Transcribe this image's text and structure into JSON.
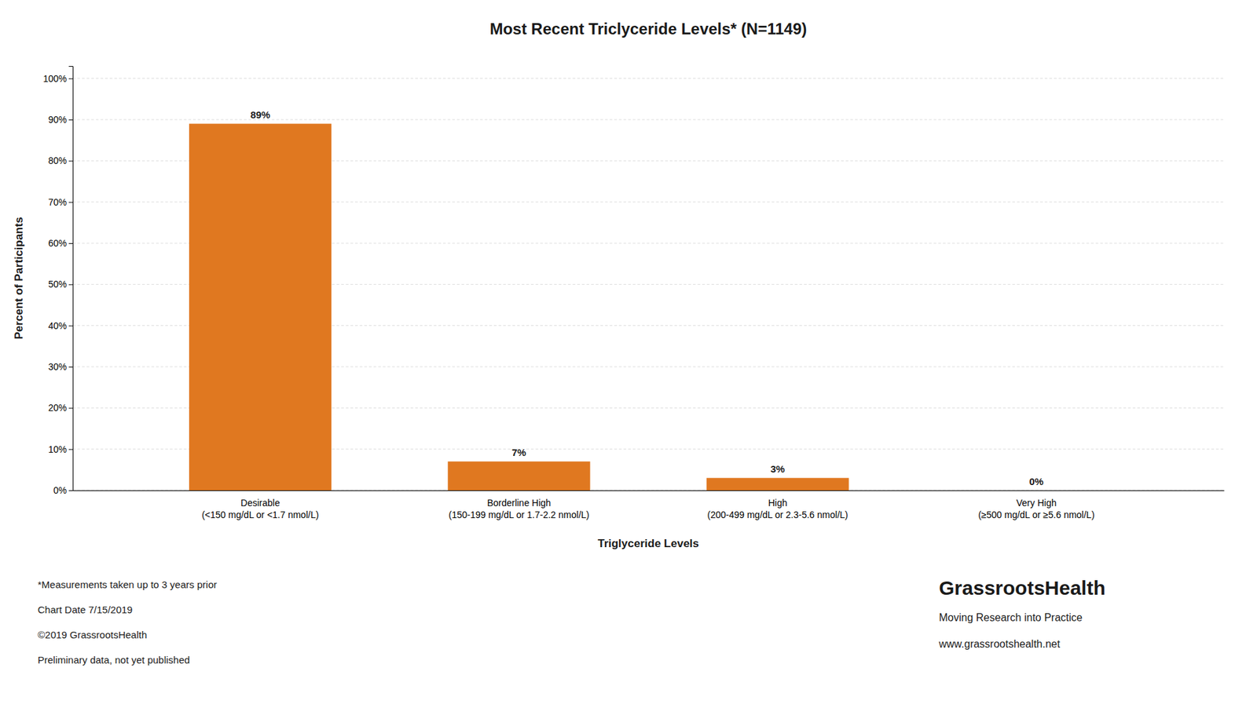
{
  "chart_data": {
    "type": "bar",
    "title": "Most Recent Triclyceride Levels* (N=1149)",
    "categories": [
      "Desirable\n(<150 mg/dL or <1.7 nmol/L)",
      "Borderline High\n(150-199 mg/dL or 1.7-2.2 nmol/L)",
      "High\n(200-499 mg/dL or 2.3-5.6 nmol/L)",
      "Very High\n(≥500 mg/dL or ≥5.6 nmol/L)"
    ],
    "values": [
      89,
      7,
      3,
      0
    ],
    "value_labels": [
      "89%",
      "7%",
      "3%",
      "0%"
    ],
    "data_labels": true,
    "color": "#E07820",
    "xlabel": "Triglyceride Levels",
    "ylabel": "Percent of Participants",
    "ylim": [
      0,
      103
    ],
    "yticks": [
      {
        "value": 0,
        "label": "0%"
      },
      {
        "value": 10,
        "label": "10%"
      },
      {
        "value": 20,
        "label": "20%"
      },
      {
        "value": 30,
        "label": "30%"
      },
      {
        "value": 40,
        "label": "40%"
      },
      {
        "value": 50,
        "label": "50%"
      },
      {
        "value": 60,
        "label": "60%"
      },
      {
        "value": 70,
        "label": "70%"
      },
      {
        "value": 80,
        "label": "80%"
      },
      {
        "value": 90,
        "label": "90%"
      },
      {
        "value": 100,
        "label": "100%"
      }
    ],
    "grid": true,
    "annotations": [
      "*Measurements taken up to 3 years prior",
      "Chart Date 7/15/2019",
      "©2019 GrassrootsHealth",
      "Preliminary data, not yet published",
      "GrassrootsHealth",
      "Moving Research into Practice",
      "www.grassrootshealth.net"
    ]
  }
}
